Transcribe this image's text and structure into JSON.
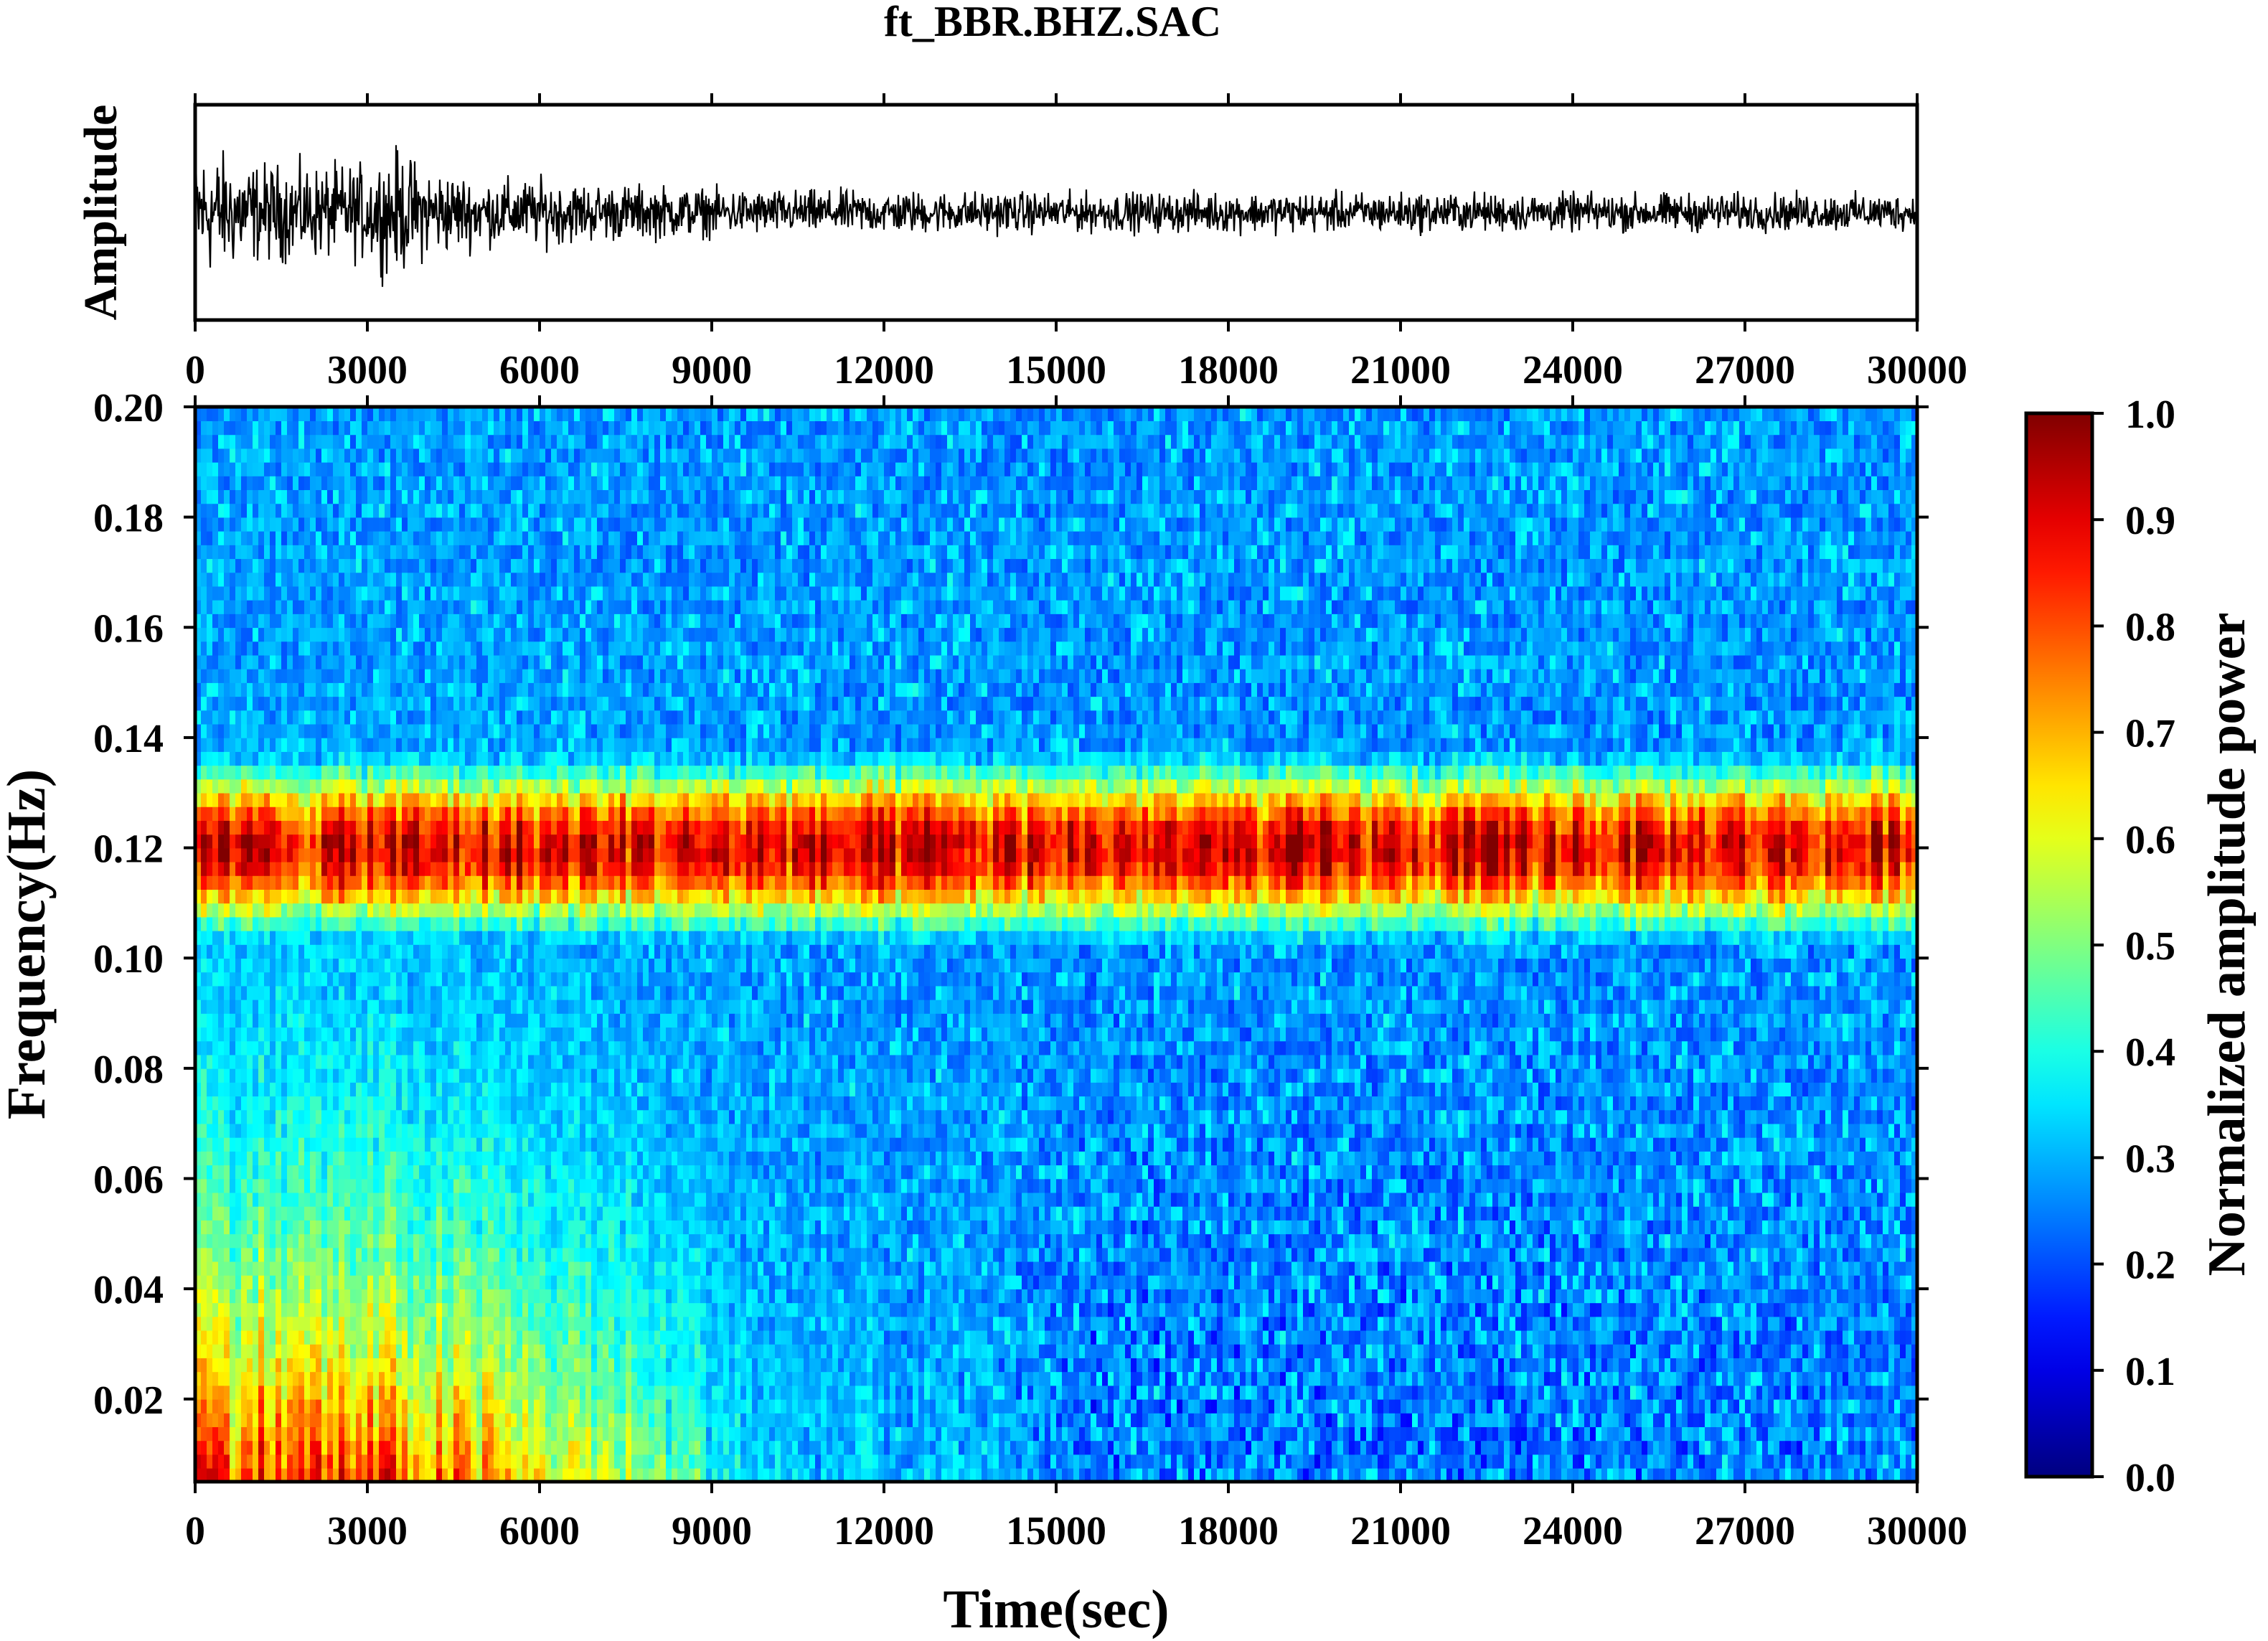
{
  "title": "ft_BBR.BHZ.SAC",
  "chart_data": [
    {
      "type": "line",
      "title": "ft_BBR.BHZ.SAC",
      "ylabel": "Amplitude",
      "xlabel": "",
      "xlim": [
        0,
        30000
      ],
      "ylim": [
        -1,
        1
      ],
      "x_ticks": [
        "0",
        "3000",
        "6000",
        "9000",
        "12000",
        "15000",
        "18000",
        "21000",
        "24000",
        "27000",
        "30000"
      ],
      "y_ticks": [],
      "envelope": {
        "x": [
          0,
          1000,
          2000,
          3000,
          3500,
          4000,
          5000,
          6000,
          7000,
          8000,
          9000,
          10000,
          12000,
          14000,
          15000,
          18000,
          21000,
          24000,
          27000,
          30000
        ],
        "amplitude": [
          0.85,
          0.62,
          0.58,
          0.6,
          0.78,
          0.58,
          0.42,
          0.42,
          0.36,
          0.34,
          0.3,
          0.28,
          0.27,
          0.26,
          0.25,
          0.25,
          0.25,
          0.24,
          0.24,
          0.23
        ]
      },
      "series_color": "#000000"
    },
    {
      "type": "heatmap",
      "xlabel": "Time(sec)",
      "ylabel": "Frequency(Hz)",
      "xlim": [
        0,
        30000
      ],
      "ylim": [
        0.005,
        0.2
      ],
      "x_ticks": [
        "0",
        "3000",
        "6000",
        "9000",
        "12000",
        "15000",
        "18000",
        "21000",
        "24000",
        "27000",
        "30000"
      ],
      "y_ticks": [
        "0.02",
        "0.04",
        "0.06",
        "0.08",
        "0.10",
        "0.12",
        "0.14",
        "0.16",
        "0.18",
        "0.20"
      ],
      "colormap": "jet",
      "power_band": {
        "center_hz": 0.12,
        "width_hz": 0.016,
        "peak_power": 0.95
      },
      "low_frequency_energy": {
        "x": [
          0,
          2000,
          4000,
          6000,
          7600,
          8000,
          10000,
          12000,
          14000,
          15000,
          18000,
          21000,
          24000,
          27000,
          30000
        ],
        "power": [
          0.98,
          0.95,
          0.88,
          0.72,
          0.6,
          0.55,
          0.35,
          0.33,
          0.3,
          0.16,
          0.14,
          0.12,
          0.14,
          0.17,
          0.2
        ]
      },
      "background_power": 0.28,
      "colorbar": {
        "label": "Normalized amplitude power",
        "range": [
          0.0,
          1.0
        ],
        "ticks": [
          "0.0",
          "0.1",
          "0.2",
          "0.3",
          "0.4",
          "0.5",
          "0.6",
          "0.7",
          "0.8",
          "0.9",
          "1.0"
        ]
      }
    }
  ]
}
